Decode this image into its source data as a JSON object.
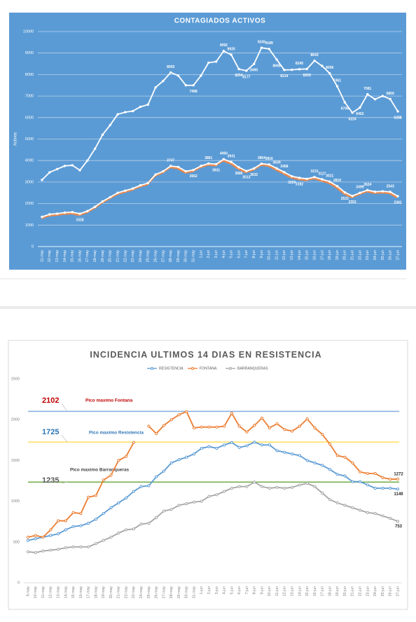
{
  "chart_data": [
    {
      "type": "line",
      "title": "CONTAGIADOS ACTIVOS",
      "y_label": "Activos",
      "background": "#5b9bd5",
      "grid": true,
      "categories": [
        "11-may",
        "12-may",
        "13-may",
        "14-may",
        "15-may",
        "16-may",
        "17-may",
        "18-may",
        "19-may",
        "20-may",
        "21-may",
        "22-may",
        "23-may",
        "24-may",
        "25-may",
        "26-may",
        "27-may",
        "28-may",
        "29-may",
        "30-may",
        "31-may",
        "1-jun",
        "2-jun",
        "3-jun",
        "4-jun",
        "5-jun",
        "6-jun",
        "7-jun",
        "8-jun",
        "9-jun",
        "10-jun",
        "11-jun",
        "12-jun",
        "13-jun",
        "14-jun",
        "15-jun",
        "16-jun",
        "17-jun",
        "18-jun",
        "19-jun",
        "20-jun",
        "21-jun",
        "22-jun",
        "23-jun",
        "24-jun",
        "25-jun",
        "26-jun",
        "27-jun"
      ],
      "ylim": [
        0,
        10000
      ],
      "yticks": [
        0,
        1000,
        2000,
        3000,
        4000,
        5000,
        6000,
        7000,
        8000,
        9000,
        10000
      ],
      "series": [
        {
          "color": "#ffffff",
          "values": [
            3100,
            3450,
            3600,
            3750,
            3780,
            3550,
            4000,
            4550,
            5200,
            5650,
            6150,
            6250,
            6300,
            6500,
            6600,
            7400,
            7700,
            8093,
            7950,
            7500,
            7498,
            7950,
            8550,
            8600,
            9092,
            8920,
            8254,
            8177,
            8490,
            9245,
            9189,
            8698,
            8214,
            8220,
            8245,
            8259,
            8643,
            8400,
            8056,
            7451,
            6706,
            6224,
            6462,
            7081,
            6850,
            7000,
            6859,
            6288
          ],
          "value_labels": [
            null,
            null,
            null,
            null,
            null,
            null,
            null,
            null,
            null,
            null,
            null,
            null,
            null,
            null,
            null,
            null,
            null,
            "8093",
            null,
            null,
            "7498",
            null,
            null,
            null,
            "9092",
            "8920",
            "8254",
            "8177",
            "8490",
            "9245",
            "9189",
            "8698",
            "8214",
            null,
            "8245",
            "8259",
            "8643",
            null,
            "8056",
            "7451",
            "6706",
            "6224",
            "6462",
            "7081",
            null,
            null,
            "6859",
            "6288"
          ]
        },
        {
          "color": "#ffffff",
          "shadow": "#e8894e",
          "values": [
            1380,
            1500,
            1530,
            1580,
            1600,
            1528,
            1650,
            1850,
            2100,
            2300,
            2500,
            2600,
            2700,
            2850,
            2950,
            3350,
            3500,
            3747,
            3700,
            3500,
            3562,
            3750,
            3861,
            3831,
            4060,
            3931,
            3686,
            3513,
            3632,
            3854,
            3816,
            3639,
            3458,
            3269,
            3192,
            3150,
            3231,
            3127,
            3021,
            2810,
            2522,
            2353,
            2499,
            2624,
            2550,
            2570,
            2543,
            2341
          ],
          "value_labels": [
            null,
            null,
            null,
            null,
            null,
            "1528",
            null,
            null,
            null,
            null,
            null,
            null,
            null,
            null,
            null,
            null,
            null,
            "3747",
            null,
            null,
            "3562",
            null,
            "3861",
            "3831",
            "4060",
            "3931",
            "3686",
            "3513",
            "3632",
            "3854",
            "3816",
            "3639",
            "3458",
            "3269",
            "3192",
            null,
            "3231",
            "3127",
            "3021",
            "2810",
            "2522",
            "2353",
            "2499",
            "2624",
            null,
            null,
            "2543",
            "2341"
          ]
        }
      ]
    },
    {
      "type": "line",
      "title": "INCIDENCIA ULTIMOS 14 DIAS EN RESISTENCIA",
      "grid": false,
      "legend": "top",
      "categories": [
        "9-may",
        "10-may",
        "11-may",
        "12-may",
        "13-may",
        "14-may",
        "15-may",
        "16-may",
        "17-may",
        "18-may",
        "19-may",
        "20-may",
        "21-may",
        "22-may",
        "23-may",
        "24-may",
        "25-may",
        "26-may",
        "27-may",
        "28-may",
        "29-may",
        "30-may",
        "31-may",
        "1-jun",
        "2-jun",
        "3-jun",
        "4-jun",
        "5-jun",
        "6-jun",
        "7-jun",
        "8-jun",
        "9-jun",
        "10-jun",
        "11-jun",
        "12-jun",
        "13-jun",
        "14-jun",
        "15-jun",
        "16-jun",
        "17-jun",
        "18-jun",
        "19-jun",
        "20-jun",
        "21-jun",
        "22-jun",
        "23-jun",
        "24-jun",
        "25-jun",
        "26-jun",
        "27-jun"
      ],
      "ylim": [
        0,
        2500
      ],
      "yticks": [
        0,
        500,
        1000,
        1500,
        2000,
        2500
      ],
      "reference_lines": [
        {
          "value": 2102,
          "text": "Pico maximo Fontana",
          "color": "#8db4e2",
          "label_color": "#c00000",
          "text_color": "#c00000"
        },
        {
          "value": 1725,
          "text": "Pico maximo Resistencia",
          "color": "#ffe169",
          "label_color": "#2e75b6",
          "text_color": "#2e75b6"
        },
        {
          "value": 1235,
          "text": "Pico maximo Barranqueras",
          "color": "#70ad47",
          "label_color": "#595959",
          "text_color": "#404040"
        }
      ],
      "series": [
        {
          "name": "RESISTENCIA",
          "color": "#5b9bd5",
          "values": [
            520,
            540,
            560,
            580,
            600,
            650,
            690,
            700,
            730,
            780,
            850,
            920,
            980,
            1040,
            1120,
            1180,
            1190,
            1300,
            1370,
            1470,
            1510,
            1540,
            1580,
            1650,
            1670,
            1650,
            1690,
            1720,
            1660,
            1680,
            1725,
            1690,
            1690,
            1620,
            1600,
            1580,
            1560,
            1500,
            1470,
            1440,
            1390,
            1330,
            1310,
            1240,
            1240,
            1200,
            1160,
            1160,
            1160,
            1149
          ],
          "value_labels": [
            null,
            null,
            null,
            null,
            null,
            null,
            null,
            null,
            null,
            null,
            null,
            null,
            null,
            null,
            null,
            null,
            null,
            null,
            null,
            null,
            null,
            null,
            null,
            null,
            null,
            null,
            null,
            null,
            null,
            null,
            null,
            null,
            null,
            null,
            null,
            null,
            null,
            null,
            null,
            null,
            null,
            null,
            null,
            null,
            null,
            null,
            null,
            null,
            null,
            "1149"
          ]
        },
        {
          "name": "FONTANA",
          "color": "#ed7d31",
          "values": [
            560,
            580,
            560,
            650,
            760,
            760,
            860,
            850,
            1050,
            1070,
            1260,
            1320,
            1500,
            1550,
            1720,
            null,
            1920,
            1830,
            1930,
            2000,
            2060,
            2100,
            1900,
            1910,
            1910,
            1910,
            1920,
            2080,
            1920,
            1850,
            1930,
            2020,
            1900,
            1950,
            1880,
            1860,
            1920,
            2010,
            1900,
            1820,
            1700,
            1560,
            1540,
            1470,
            1360,
            1340,
            1340,
            1290,
            1270,
            1272
          ],
          "value_labels": [
            null,
            null,
            null,
            null,
            null,
            null,
            null,
            null,
            null,
            null,
            null,
            null,
            null,
            null,
            null,
            null,
            null,
            null,
            null,
            null,
            null,
            null,
            null,
            null,
            null,
            null,
            null,
            null,
            null,
            null,
            null,
            null,
            null,
            null,
            null,
            null,
            null,
            null,
            null,
            null,
            null,
            null,
            null,
            null,
            null,
            null,
            null,
            null,
            null,
            "1272"
          ]
        },
        {
          "name": "BARRANQUERAS",
          "color": "#a5a5a5",
          "values": [
            380,
            370,
            390,
            400,
            410,
            430,
            440,
            440,
            440,
            480,
            520,
            560,
            610,
            650,
            660,
            720,
            730,
            800,
            880,
            900,
            950,
            970,
            990,
            1000,
            1060,
            1080,
            1120,
            1160,
            1180,
            1180,
            1235,
            1180,
            1160,
            1170,
            1160,
            1170,
            1200,
            1220,
            1180,
            1100,
            1020,
            980,
            950,
            920,
            890,
            860,
            850,
            820,
            790,
            753
          ],
          "value_labels": [
            null,
            null,
            null,
            null,
            null,
            null,
            null,
            null,
            null,
            null,
            null,
            null,
            null,
            null,
            null,
            null,
            null,
            null,
            null,
            null,
            null,
            null,
            null,
            null,
            null,
            null,
            null,
            null,
            null,
            null,
            null,
            null,
            null,
            null,
            null,
            null,
            null,
            null,
            null,
            null,
            null,
            null,
            null,
            null,
            null,
            null,
            null,
            null,
            null,
            "753"
          ]
        }
      ]
    }
  ]
}
